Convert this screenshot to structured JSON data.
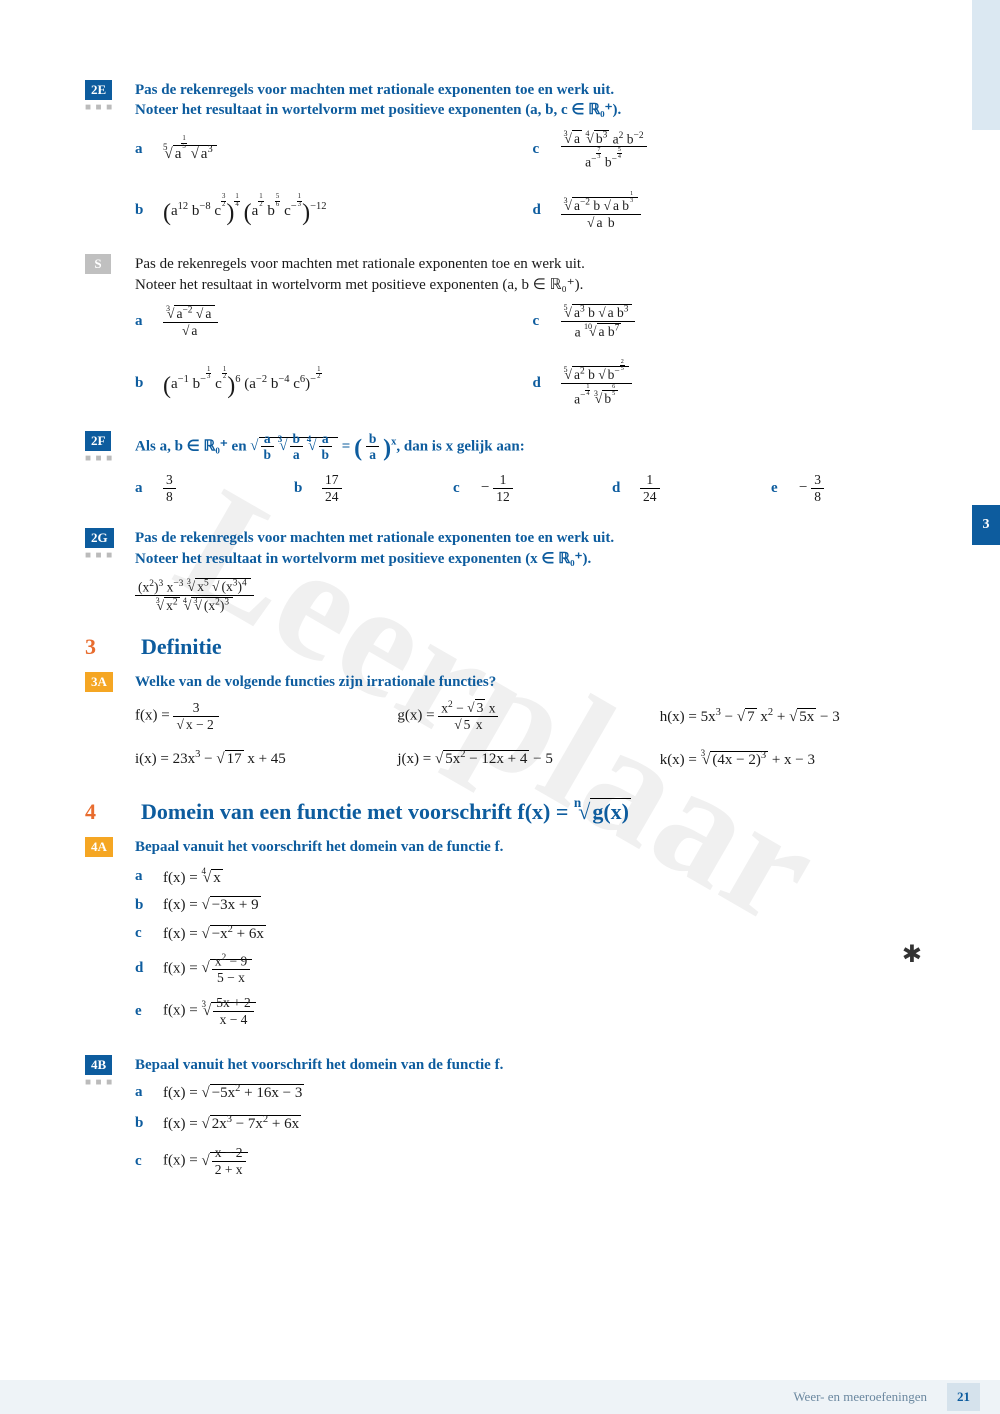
{
  "watermark": "Leerplaar",
  "page_tab": "3",
  "side_stripe_color": "#dbe8f2",
  "footer": {
    "text": "Weer- en meeroefeningen",
    "page": "21"
  },
  "colors": {
    "primary_blue": "#0d5c9e",
    "orange": "#f5a623",
    "section_orange": "#e86c2e",
    "grey_label": "#c0c0c0",
    "footer_bg": "#eef3f7"
  },
  "exercises": {
    "e2E": {
      "label": "2E",
      "dots": "■ ■ ■",
      "prompt_lines": [
        "Pas de rekenregels voor machten met rationale exponenten toe en werk uit.",
        "Noteer het resultaat in wortelvorm met positieve exponenten (a, b, c ∈ ℝ₀⁺)."
      ],
      "items": [
        {
          "letter": "a",
          "expr_html": "<span class='root-idx'>5</span><span class='sqrt'><span>a<sup><span class='sfrac'><span>1</span><span class='d'>5</span></span></sup> <span class='sqrt'><span>a<sup>3</sup></span></span></span></span>"
        },
        {
          "letter": "c",
          "expr_html": "<span class='frac'><span><span class='root-idx'>3</span><span class='sqrt'><span>a</span></span> <span class='root-idx'>4</span><span class='sqrt'><span>b<sup>3</sup></span></span> a<sup>2</sup> b<sup>−2</sup></span><span class='den'>a<sup>−<span class='sfrac'><span>7</span><span class='d'>3</span></span></sup> b<sup>−<span class='sfrac'><span>5</span><span class='d'>4</span></span></sup></span></span>"
        },
        {
          "letter": "b",
          "expr_html": "<span class='big-par'>(</span>a<sup>12</sup> b<sup>−8</sup> c<sup><span class='sfrac'><span>3</span><span class='d'>2</span></span></sup><span class='big-par'>)</span><sup><span class='sfrac'><span>1</span><span class='d'>4</span></span></sup> <span class='big-par'>(</span>a<sup><span class='sfrac'><span>1</span><span class='d'>2</span></span></sup> b<sup><span class='sfrac'><span>5</span><span class='d'>6</span></span></sup> c<sup>−<span class='sfrac'><span>1</span><span class='d'>3</span></span></sup><span class='big-par'>)</span><sup>−12</sup>"
        },
        {
          "letter": "d",
          "expr_html": "<span class='frac'><span><span class='root-idx'>3</span><span class='sqrt'><span>a<sup>−2</sup> b <span class='sqrt'><span>a b<sup><span class='sfrac'><span>1</span><span class='d'>3</span></span></sup></span></span></span></span></span><span class='den'><span class='sqrt'><span>a</span></span> b</span></span>"
        }
      ]
    },
    "eS": {
      "label": "S",
      "grey": true,
      "prompt_lines": [
        "Pas de rekenregels voor machten met rationale exponenten toe en werk uit.",
        "Noteer het resultaat in wortelvorm met positieve exponenten (a, b ∈ ℝ₀⁺)."
      ],
      "items": [
        {
          "letter": "a",
          "expr_html": "<span class='frac'><span><span class='root-idx'>3</span><span class='sqrt'><span>a<sup>−2</sup> <span class='sqrt'><span>a</span></span></span></span></span><span class='den'><span class='sqrt'><span>a</span></span></span></span>"
        },
        {
          "letter": "c",
          "expr_html": "<span class='frac'><span><span class='root-idx'>5</span><span class='sqrt'><span>a<sup>3</sup> b <span class='sqrt'><span>a b<sup>3</sup></span></span></span></span></span><span class='den'>a <span class='root-idx'>10</span><span class='sqrt'><span>a b<sup>7</sup></span></span></span></span>"
        },
        {
          "letter": "b",
          "expr_html": "<span class='big-par'>(</span>a<sup>−1</sup> b<sup>−<span class='sfrac'><span>1</span><span class='d'>3</span></span></sup> c<sup><span class='sfrac'><span>1</span><span class='d'>2</span></span></sup><span class='big-par'>)</span><sup>6</sup> (a<sup>−2</sup> b<sup>−4</sup> c<sup>6</sup>)<sup>−<span class='sfrac'><span>1</span><span class='d'>2</span></span></sup>"
        },
        {
          "letter": "d",
          "expr_html": "<span class='frac'><span><span class='root-idx'>5</span><span class='sqrt'><span>a<sup>2</sup> b <span class='sqrt'><span>b<sup>−<span class='sfrac'><span>2</span><span class='d'>5</span></span></sup></span></span></span></span></span><span class='den'>a<sup>−<span class='sfrac'><span>1</span><span class='d'>4</span></span></sup> <span class='root-idx'>3</span><span class='sqrt'><span>b<sup><span class='sfrac'><span>6</span><span class='d'>5</span></span></sup></span></span></span></span>"
        }
      ]
    },
    "e2F": {
      "label": "2F",
      "dots": "■ ■ ■",
      "prompt_html": "Als a, b ∈ ℝ₀⁺ en <span class='sqrt'><span><span class='frac'><span>a</span><span class='den'>b</span></span> <span class='root-idx'>3</span><span class='sqrt'><span><span class='frac'><span>b</span><span class='den'>a</span></span> <span class='root-idx'>4</span><span class='sqrt'><span><span class='frac'><span>a</span><span class='den'>b</span></span></span></span></span></span></span></span> = <span class='big-par'>(</span> <span class='frac'><span>b</span><span class='den'>a</span></span> <span class='big-par'>)</span><sup>x</sup>, dan is x gelijk aan:",
      "options": [
        {
          "letter": "a",
          "html": "<span class='frac'><span>3</span><span class='den'>8</span></span>"
        },
        {
          "letter": "b",
          "html": "<span class='frac'><span>17</span><span class='den'>24</span></span>"
        },
        {
          "letter": "c",
          "html": "− <span class='frac'><span>1</span><span class='den'>12</span></span>"
        },
        {
          "letter": "d",
          "html": "<span class='frac'><span>1</span><span class='den'>24</span></span>"
        },
        {
          "letter": "e",
          "html": "− <span class='frac'><span>3</span><span class='den'>8</span></span>"
        }
      ]
    },
    "e2G": {
      "label": "2G",
      "dots": "■ ■ ■",
      "prompt_lines": [
        "Pas de rekenregels voor machten met rationale exponenten toe en werk uit.",
        "Noteer het resultaat in wortelvorm met positieve exponenten (x ∈ ℝ₀⁺)."
      ],
      "expr_html": "<span class='frac'><span>(x<sup>2</sup>)<sup>3</sup> x<sup>−3</sup> <span class='root-idx'>3</span><span class='sqrt'><span>x<sup>5</sup> <span class='sqrt'><span>(x<sup>3</sup>)<sup>4</sup></span></span></span></span></span><span class='den'><span class='root-idx'>3</span><span class='sqrt'><span>x<sup>2</sup></span></span> <span class='root-idx'>4</span><span class='sqrt'><span><span class='root-idx'>3</span><span class='sqrt'><span>(x<sup>2</sup>)<sup>3</sup></span></span></span></span></span></span>"
    }
  },
  "sections": {
    "s3": {
      "num": "3",
      "title": "Definitie"
    },
    "s4": {
      "num": "4",
      "title_html": "Domein van een functie met voorschrift f(x) = <span class='root-idx'>n</span><span class='sqrt'><span>g(x)</span></span>"
    }
  },
  "e3A": {
    "label": "3A",
    "prompt": "Welke van de volgende functies zijn irrationale functies?",
    "funcs": [
      {
        "html": "f(x) = <span class='frac'><span>3</span><span class='den'><span class='sqrt'><span>x − 2</span></span></span></span>"
      },
      {
        "html": "g(x) = <span class='frac'><span>x<sup>2</sup> − <span class='sqrt'><span>3</span></span> x</span><span class='den'><span class='sqrt'><span>5</span></span> x</span></span>"
      },
      {
        "html": "h(x) = 5x<sup>3</sup> − <span class='sqrt'><span>7</span></span> x<sup>2</sup> + <span class='sqrt'><span>5x</span></span> − 3"
      },
      {
        "html": "i(x) = 23x<sup>3</sup> − <span class='sqrt'><span>17</span></span> x + 45"
      },
      {
        "html": "j(x) = <span class='sqrt'><span>5x<sup>2</sup> − 12x + 4</span></span> − 5"
      },
      {
        "html": "k(x) = <span class='root-idx'>3</span><span class='sqrt'><span>(4x − 2)<sup>3</sup></span></span> + x − 3"
      }
    ]
  },
  "e4A": {
    "label": "4A",
    "prompt": "Bepaal vanuit het voorschrift het domein van de functie f.",
    "items": [
      {
        "letter": "a",
        "html": "f(x) = <span class='root-idx'>4</span><span class='sqrt'><span>x</span></span>"
      },
      {
        "letter": "b",
        "html": "f(x) = <span class='sqrt'><span>−3x + 9</span></span>"
      },
      {
        "letter": "c",
        "html": "f(x) = <span class='sqrt'><span>−x<sup>2</sup> + 6x</span></span>"
      },
      {
        "letter": "d",
        "html": "f(x) = <span class='sqrt'><span><span class='frac'><span>x<sup>2</sup> − 9</span><span class='den'>5 − x</span></span></span></span>"
      },
      {
        "letter": "e",
        "html": "f(x) = <span class='root-idx'>3</span><span class='sqrt'><span><span class='frac'><span>5x + 2</span><span class='den'>x − 4</span></span></span></span>"
      }
    ]
  },
  "e4B": {
    "label": "4B",
    "dots": "■ ■ ■",
    "prompt": "Bepaal vanuit het voorschrift het domein van de functie f.",
    "items": [
      {
        "letter": "a",
        "html": "f(x) = <span class='sqrt'><span>−5x<sup>2</sup> + 16x − 3</span></span>"
      },
      {
        "letter": "b",
        "html": "f(x) = <span class='sqrt'><span>2x<sup>3</sup> − 7x<sup>2</sup> + 6x</span></span>"
      },
      {
        "letter": "c",
        "html": "f(x) = <span class='sqrt'><span><span class='frac'><span>x − 2</span><span class='den'>2 + x</span></span></span></span>"
      }
    ]
  }
}
